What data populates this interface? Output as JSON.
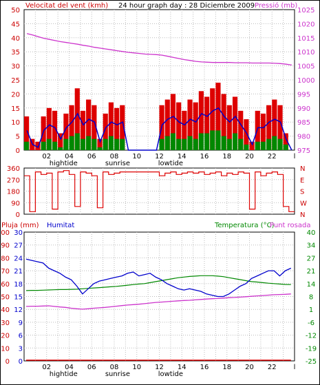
{
  "header": {
    "left_label": "Velocitat del vent (kmh)",
    "title": "24 hour graph day : 28 Diciembre 2009",
    "right_label": "Pressió (mb)"
  },
  "colors": {
    "frame": "#000000",
    "grid": "#bbbbbb",
    "wind_gust": "#dd0000",
    "wind_avg": "#0000cc",
    "wind_low": "#008800",
    "pressure": "#cc33cc",
    "direction": "#dd0000",
    "humidity": "#0000cc",
    "temperature": "#008800",
    "dew_point": "#cc33cc",
    "rain": "#dd0000",
    "left_axis_text": "#cc0000",
    "right_axis_text": "#cc33cc",
    "temp_axis_text": "#008800"
  },
  "hour_ticks": [
    "02",
    "04",
    "06",
    "08",
    "10",
    "12",
    "14",
    "16",
    "18",
    "20",
    "22",
    "l"
  ],
  "markers": [
    {
      "label": "hightide",
      "hour": 3.5
    },
    {
      "label": "sunrise",
      "hour": 8.3
    },
    {
      "label": "lowtide",
      "hour": 13.0
    }
  ],
  "chart_data": [
    {
      "type": "bar",
      "name": "wind",
      "title": "Velocitat del vent (kmh)",
      "y_ticks": [
        0,
        5,
        10,
        15,
        20,
        25,
        30,
        35,
        40,
        45,
        50
      ],
      "ylim": [
        0,
        50
      ],
      "right_axis": {
        "label": "Pressió (mb)",
        "ticks": [
          975,
          980,
          985,
          990,
          995,
          1000,
          1005,
          1010,
          1015,
          1020,
          1025
        ],
        "ylim": [
          975,
          1025
        ]
      },
      "x_hours": [
        0.0,
        0.5,
        1.0,
        1.5,
        2.0,
        2.5,
        3.0,
        3.5,
        4.0,
        4.5,
        5.0,
        5.5,
        6.0,
        6.5,
        7.0,
        7.5,
        8.0,
        8.5,
        9.0,
        9.5,
        10.0,
        10.5,
        11.0,
        11.5,
        12.0,
        12.5,
        13.0,
        13.5,
        14.0,
        14.5,
        15.0,
        15.5,
        16.0,
        16.5,
        17.0,
        17.5,
        18.0,
        18.5,
        19.0,
        19.5,
        20.0,
        20.5,
        21.0,
        21.5,
        22.0,
        22.5,
        23.0,
        23.5
      ],
      "gust": [
        12,
        4,
        3,
        12,
        15,
        14,
        6,
        13,
        16,
        22,
        14,
        18,
        16,
        4,
        13,
        17,
        15,
        16,
        0,
        0,
        0,
        0,
        0,
        0,
        16,
        18,
        20,
        17,
        14,
        18,
        17,
        21,
        19,
        22,
        24,
        20,
        16,
        19,
        14,
        11,
        3,
        14,
        13,
        16,
        18,
        16,
        6,
        0
      ],
      "average": [
        7,
        2,
        1,
        7,
        9,
        8,
        4,
        8,
        10,
        13,
        9,
        11,
        10,
        3,
        8,
        10,
        9,
        10,
        0,
        0,
        0,
        0,
        0,
        0,
        9,
        11,
        12,
        10,
        9,
        11,
        10,
        13,
        12,
        14,
        15,
        12,
        10,
        12,
        9,
        6,
        2,
        8,
        8,
        10,
        11,
        10,
        4,
        0
      ],
      "low": [
        3,
        0,
        0,
        3,
        4,
        3,
        1,
        4,
        5,
        6,
        4,
        5,
        4,
        1,
        4,
        5,
        4,
        4,
        0,
        0,
        0,
        0,
        0,
        0,
        4,
        5,
        6,
        4,
        4,
        5,
        4,
        6,
        6,
        7,
        7,
        5,
        4,
        6,
        4,
        2,
        0,
        3,
        3,
        4,
        5,
        4,
        2,
        0
      ],
      "pressure": [
        1016.5,
        1016.0,
        1015.4,
        1014.8,
        1014.4,
        1014.0,
        1013.6,
        1013.3,
        1013.0,
        1012.7,
        1012.3,
        1012.0,
        1011.6,
        1011.3,
        1011.0,
        1010.7,
        1010.4,
        1010.1,
        1009.8,
        1009.6,
        1009.4,
        1009.2,
        1009.1,
        1009.0,
        1008.8,
        1008.4,
        1008.0,
        1007.6,
        1007.2,
        1006.9,
        1006.6,
        1006.4,
        1006.3,
        1006.2,
        1006.2,
        1006.2,
        1006.2,
        1006.1,
        1006.1,
        1006.1,
        1006.0,
        1006.0,
        1006.0,
        1006.0,
        1005.9,
        1005.8,
        1005.6,
        1005.3
      ]
    },
    {
      "type": "line",
      "name": "wind_direction",
      "y_ticks": [
        0,
        90,
        180,
        270,
        360
      ],
      "ylim": [
        0,
        360
      ],
      "right_ticks": [
        "N",
        "W",
        "S",
        "E",
        "N"
      ],
      "x_hours": [
        0.0,
        0.5,
        1.0,
        1.5,
        2.0,
        2.5,
        3.0,
        3.5,
        4.0,
        4.5,
        5.0,
        5.5,
        6.0,
        6.5,
        7.0,
        7.5,
        8.0,
        8.5,
        9.0,
        9.5,
        10.0,
        10.5,
        11.0,
        11.5,
        12.0,
        12.5,
        13.0,
        13.5,
        14.0,
        14.5,
        15.0,
        15.5,
        16.0,
        16.5,
        17.0,
        17.5,
        18.0,
        18.5,
        19.0,
        19.5,
        20.0,
        20.5,
        21.0,
        21.5,
        22.0,
        22.5,
        23.0,
        23.5
      ],
      "degrees": [
        300,
        20,
        330,
        310,
        320,
        40,
        330,
        340,
        310,
        60,
        330,
        320,
        300,
        50,
        330,
        310,
        320,
        330,
        330,
        330,
        330,
        330,
        330,
        330,
        300,
        320,
        330,
        310,
        320,
        330,
        320,
        330,
        310,
        320,
        330,
        300,
        320,
        310,
        330,
        320,
        40,
        330,
        300,
        320,
        330,
        310,
        60,
        20
      ]
    },
    {
      "type": "line",
      "name": "humidity_temperature_rain",
      "title": "Pluja (mm)",
      "left_axis": {
        "label": "Pluja (mm)",
        "ticks": [
          0,
          10,
          20,
          30,
          40,
          50,
          60,
          70,
          80,
          90,
          100
        ],
        "ylim": [
          0,
          100
        ]
      },
      "inner_axis": {
        "label": "Humitat",
        "ticks": [
          0,
          3,
          6,
          9,
          12,
          15,
          18,
          21,
          24,
          27,
          30
        ],
        "ylim": [
          0,
          30
        ]
      },
      "right_axis": {
        "label": "Temperatura (°C)",
        "label2": "Punt rosada",
        "ticks": [
          -25,
          -19,
          -12,
          -6,
          1,
          8,
          14,
          21,
          27,
          34,
          40
        ],
        "ylim": [
          -25,
          40
        ]
      },
      "x_hours": [
        0.0,
        0.5,
        1.0,
        1.5,
        2.0,
        2.5,
        3.0,
        3.5,
        4.0,
        4.5,
        5.0,
        5.5,
        6.0,
        6.5,
        7.0,
        7.5,
        8.0,
        8.5,
        9.0,
        9.5,
        10.0,
        10.5,
        11.0,
        11.5,
        12.0,
        12.5,
        13.0,
        13.5,
        14.0,
        14.5,
        15.0,
        15.5,
        16.0,
        16.5,
        17.0,
        17.5,
        18.0,
        18.5,
        19.0,
        19.5,
        20.0,
        20.5,
        21.0,
        21.5,
        22.0,
        22.5,
        23.0,
        23.5
      ],
      "humidity": [
        79,
        78,
        77,
        76,
        72,
        70,
        68,
        65,
        63,
        58,
        52,
        56,
        60,
        62,
        63,
        64,
        65,
        66,
        68,
        69,
        66,
        67,
        68,
        65,
        63,
        60,
        58,
        56,
        55,
        56,
        55,
        54,
        52,
        51,
        50,
        50,
        52,
        55,
        58,
        60,
        64,
        66,
        68,
        70,
        70,
        66,
        70,
        72
      ],
      "temperature": [
        10.5,
        10.6,
        10.6,
        10.7,
        10.8,
        10.9,
        11.0,
        11.0,
        11.1,
        11.2,
        11.4,
        11.6,
        11.8,
        12.0,
        12.2,
        12.4,
        12.6,
        12.9,
        13.2,
        13.5,
        13.8,
        14.0,
        14.5,
        15.0,
        15.5,
        16.0,
        16.5,
        17.0,
        17.3,
        17.6,
        17.8,
        18.0,
        18.0,
        18.0,
        17.8,
        17.5,
        17.0,
        16.5,
        16.0,
        15.5,
        15.0,
        14.8,
        14.5,
        14.2,
        14.0,
        13.8,
        13.6,
        13.5
      ],
      "dew_point": [
        2.5,
        2.6,
        2.6,
        2.7,
        2.8,
        2.5,
        2.2,
        2.0,
        1.6,
        1.3,
        1.1,
        1.3,
        1.6,
        1.8,
        2.0,
        2.3,
        2.6,
        2.9,
        3.2,
        3.4,
        3.6,
        3.9,
        4.2,
        4.5,
        4.7,
        4.9,
        5.1,
        5.3,
        5.5,
        5.6,
        5.8,
        6.0,
        6.2,
        6.4,
        6.5,
        6.7,
        6.9,
        7.0,
        7.2,
        7.4,
        7.6,
        7.8,
        8.0,
        8.2,
        8.4,
        8.5,
        8.6,
        8.8
      ],
      "rain": [
        0,
        0,
        0,
        0,
        0,
        0,
        0,
        0,
        0,
        0,
        0,
        0,
        0,
        0,
        0,
        0,
        0,
        0,
        0,
        0,
        0,
        0,
        0,
        0,
        0,
        0,
        0,
        0,
        0,
        0,
        0,
        0,
        0,
        0,
        0,
        0,
        0,
        0,
        0,
        0,
        0,
        0,
        0,
        0,
        0,
        0,
        0,
        0
      ]
    }
  ]
}
